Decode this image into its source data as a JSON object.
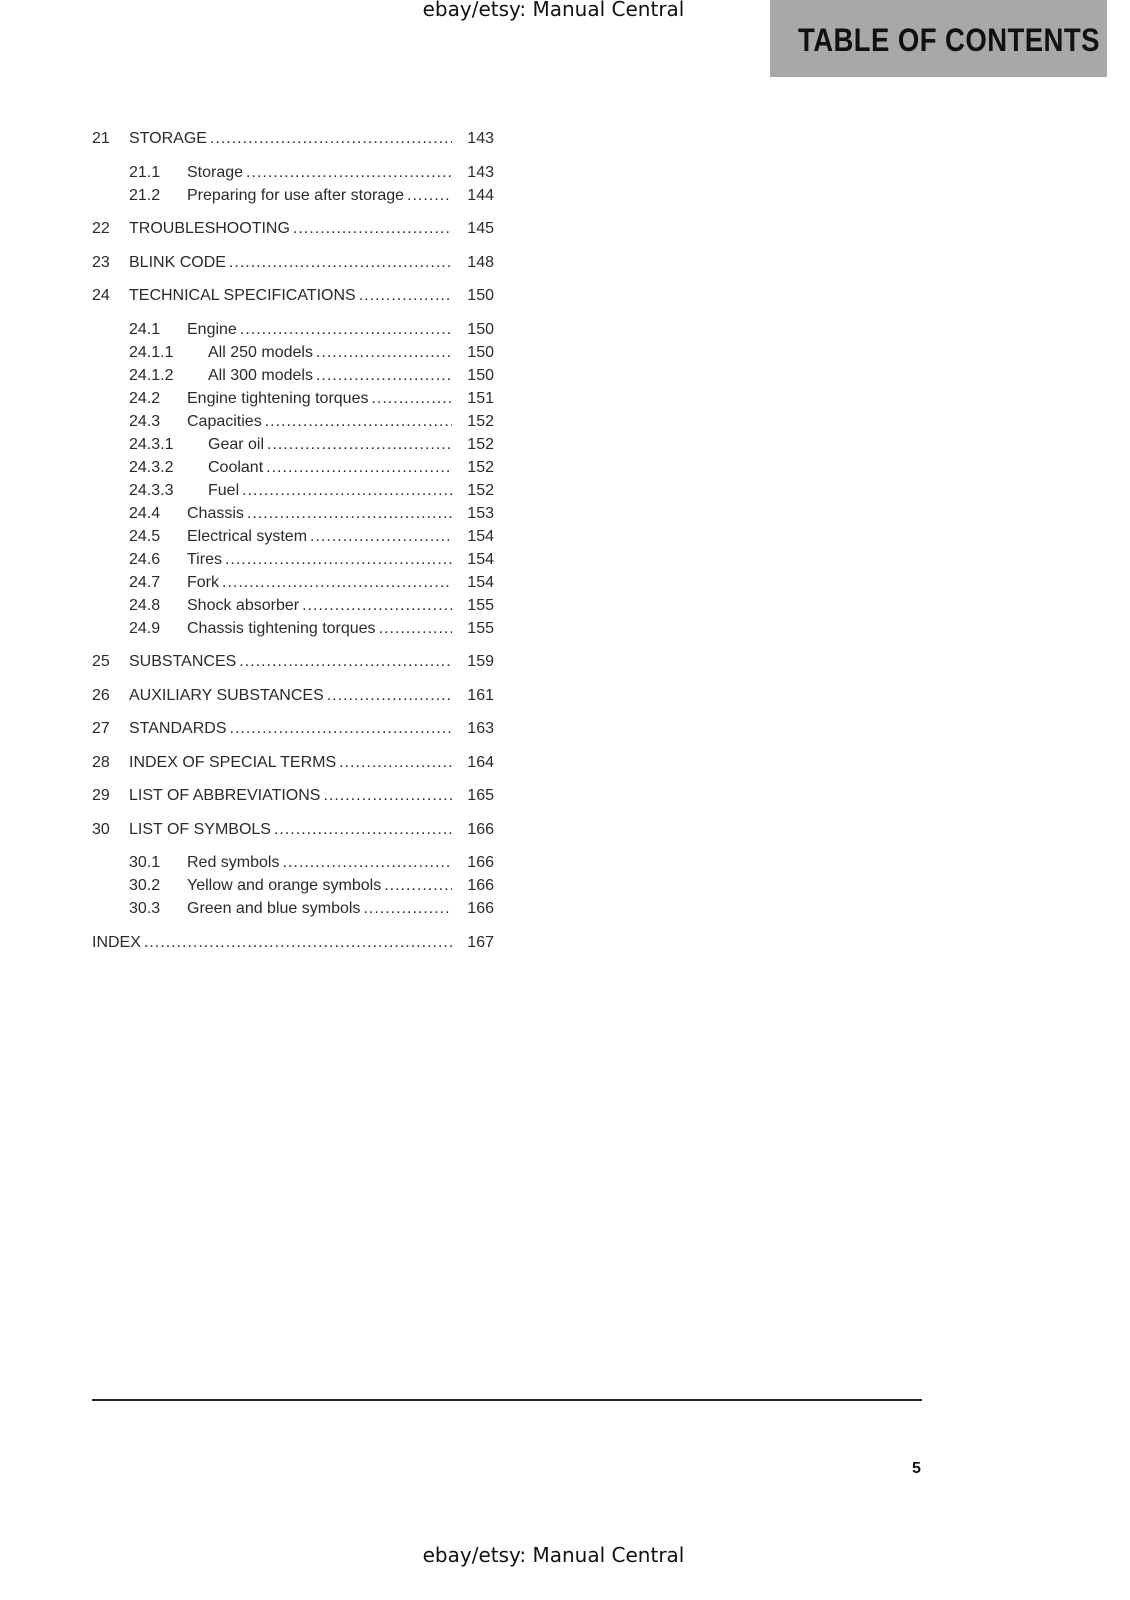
{
  "watermark_top": "ebay/etsy: Manual Central",
  "watermark_bottom": "ebay/etsy: Manual Central",
  "header_title": "TABLE OF CONTENTS",
  "page_number": "5",
  "entries": [
    {
      "num": "21",
      "title": "STORAGE",
      "page": "143",
      "level": 0
    },
    {
      "num": "21.1",
      "title": "Storage",
      "page": "143",
      "level": 1
    },
    {
      "num": "21.2",
      "title": "Preparing for use after storage",
      "page": "144",
      "level": 1
    },
    {
      "num": "22",
      "title": "TROUBLESHOOTING",
      "page": "145",
      "level": 0
    },
    {
      "num": "23",
      "title": "BLINK CODE",
      "page": "148",
      "level": 0
    },
    {
      "num": "24",
      "title": "TECHNICAL SPECIFICATIONS",
      "page": "150",
      "level": 0
    },
    {
      "num": "24.1",
      "title": "Engine",
      "page": "150",
      "level": 1
    },
    {
      "num": "24.1.1",
      "title": "All 250 models",
      "page": "150",
      "level": 2
    },
    {
      "num": "24.1.2",
      "title": "All 300 models",
      "page": "150",
      "level": 2
    },
    {
      "num": "24.2",
      "title": "Engine tightening torques",
      "page": "151",
      "level": 1
    },
    {
      "num": "24.3",
      "title": "Capacities",
      "page": "152",
      "level": 1
    },
    {
      "num": "24.3.1",
      "title": "Gear oil",
      "page": "152",
      "level": 2
    },
    {
      "num": "24.3.2",
      "title": "Coolant",
      "page": "152",
      "level": 2
    },
    {
      "num": "24.3.3",
      "title": "Fuel",
      "page": "152",
      "level": 2
    },
    {
      "num": "24.4",
      "title": "Chassis",
      "page": "153",
      "level": 1
    },
    {
      "num": "24.5",
      "title": "Electrical system",
      "page": "154",
      "level": 1
    },
    {
      "num": "24.6",
      "title": "Tires",
      "page": "154",
      "level": 1
    },
    {
      "num": "24.7",
      "title": "Fork",
      "page": "154",
      "level": 1
    },
    {
      "num": "24.8",
      "title": "Shock absorber",
      "page": "155",
      "level": 1
    },
    {
      "num": "24.9",
      "title": "Chassis tightening torques",
      "page": "155",
      "level": 1
    },
    {
      "num": "25",
      "title": "SUBSTANCES",
      "page": "159",
      "level": 0
    },
    {
      "num": "26",
      "title": "AUXILIARY SUBSTANCES",
      "page": "161",
      "level": 0
    },
    {
      "num": "27",
      "title": "STANDARDS",
      "page": "163",
      "level": 0
    },
    {
      "num": "28",
      "title": "INDEX OF SPECIAL TERMS",
      "page": "164",
      "level": 0
    },
    {
      "num": "29",
      "title": "LIST OF ABBREVIATIONS",
      "page": "165",
      "level": 0
    },
    {
      "num": "30",
      "title": "LIST OF SYMBOLS",
      "page": "166",
      "level": 0
    },
    {
      "num": "30.1",
      "title": "Red symbols",
      "page": "166",
      "level": 1
    },
    {
      "num": "30.2",
      "title": "Yellow and orange symbols",
      "page": "166",
      "level": 1
    },
    {
      "num": "30.3",
      "title": "Green and blue symbols",
      "page": "166",
      "level": 1
    },
    {
      "num": "",
      "title": "INDEX",
      "page": "167",
      "level": -1
    }
  ]
}
